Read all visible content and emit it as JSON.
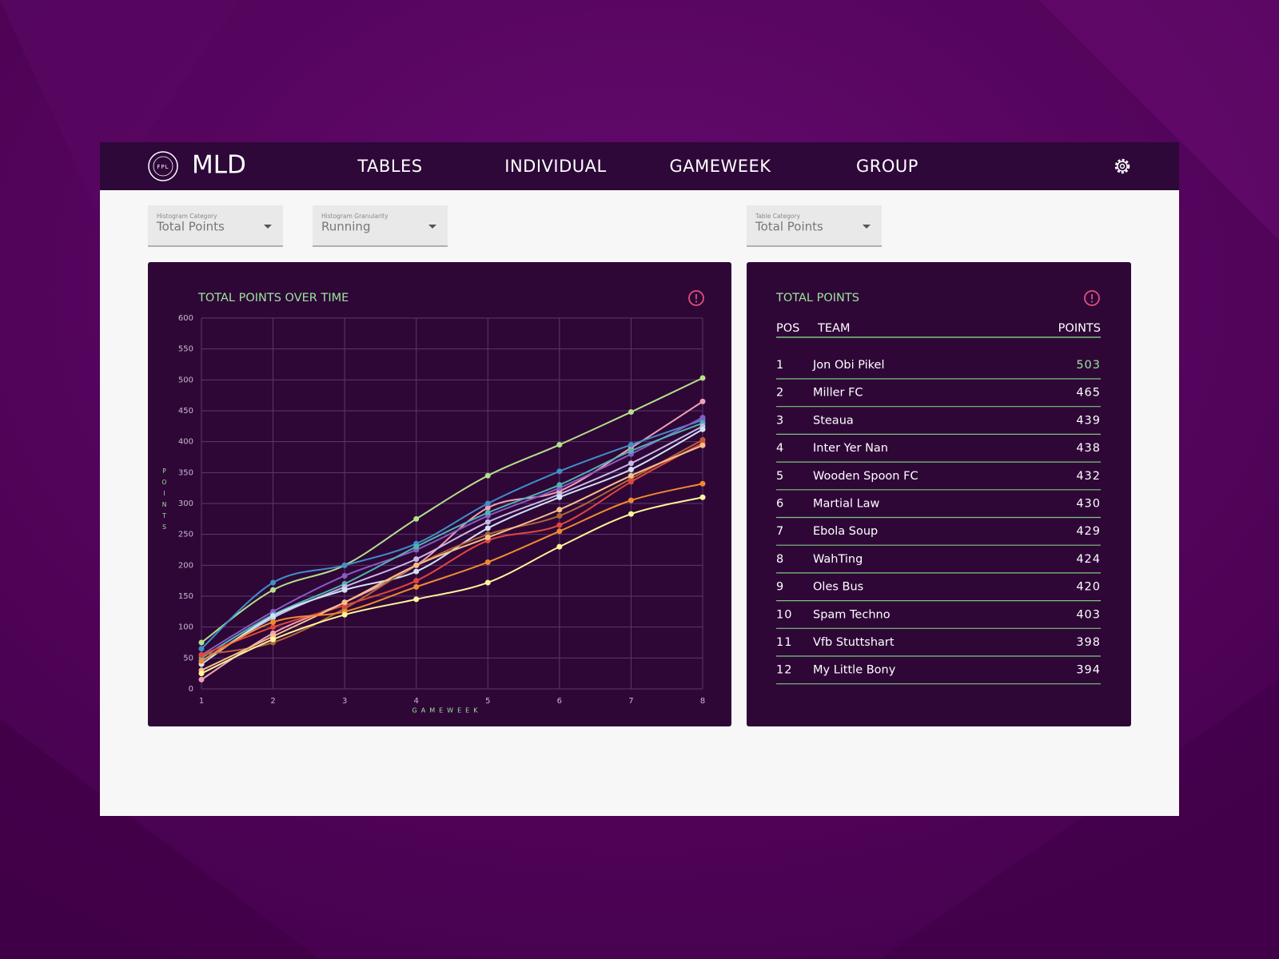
{
  "header": {
    "logo_text": "FPL",
    "title": "MLD",
    "nav": [
      "TABLES",
      "INDIVIDUAL",
      "GAMEWEEK",
      "GROUP"
    ]
  },
  "filters": [
    {
      "label": "Histogram Category",
      "value": "Total Points"
    },
    {
      "label": "Histogram Granularity",
      "value": "Running"
    },
    {
      "label": "Table Category",
      "value": "Total Points"
    }
  ],
  "chart_data": {
    "type": "line",
    "title": "TOTAL POINTS OVER TIME",
    "x_label": "GAMEWEEK",
    "y_label": "POINTS",
    "x": [
      1,
      2,
      3,
      4,
      5,
      6,
      7,
      8
    ],
    "xlim": [
      1,
      8
    ],
    "xticks": [
      1,
      2,
      3,
      4,
      5,
      6,
      7,
      8
    ],
    "ylim": [
      0,
      600
    ],
    "yticks": [
      0,
      50,
      100,
      150,
      200,
      250,
      300,
      350,
      400,
      450,
      500,
      550,
      600
    ],
    "grid": true,
    "smooth": true,
    "series": [
      {
        "color": "#b5e08a",
        "values": [
          75,
          160,
          200,
          275,
          345,
          395,
          448,
          503
        ]
      },
      {
        "color": "#f2a0b4",
        "values": [
          15,
          90,
          140,
          200,
          293,
          320,
          390,
          465
        ]
      },
      {
        "color": "#3f8fc9",
        "values": [
          65,
          172,
          200,
          235,
          300,
          352,
          395,
          435
        ]
      },
      {
        "color": "#8a5bc4",
        "values": [
          55,
          125,
          183,
          225,
          280,
          325,
          380,
          439
        ]
      },
      {
        "color": "#4fb3b0",
        "values": [
          50,
          120,
          170,
          230,
          285,
          330,
          385,
          430
        ]
      },
      {
        "color": "#c7b8e8",
        "values": [
          45,
          115,
          165,
          210,
          270,
          315,
          365,
          425
        ]
      },
      {
        "color": "#cfe3f5",
        "values": [
          40,
          118,
          160,
          190,
          260,
          310,
          355,
          420
        ]
      },
      {
        "color": "#b0653a",
        "values": [
          55,
          75,
          130,
          200,
          250,
          280,
          340,
          403
        ]
      },
      {
        "color": "#e0473c",
        "values": [
          55,
          100,
          135,
          175,
          240,
          265,
          335,
          398
        ]
      },
      {
        "color": "#f7c08a",
        "values": [
          30,
          85,
          140,
          200,
          245,
          290,
          345,
          394
        ]
      },
      {
        "color": "#f08a30",
        "values": [
          45,
          108,
          125,
          165,
          205,
          255,
          305,
          332
        ]
      },
      {
        "color": "#fff59a",
        "values": [
          25,
          80,
          120,
          145,
          172,
          230,
          283,
          310
        ]
      }
    ]
  },
  "table": {
    "title": "TOTAL POINTS",
    "columns": [
      "POS",
      "TEAM",
      "POINTS"
    ],
    "rows": [
      [
        1,
        "Jon Obi Pikel",
        503
      ],
      [
        2,
        "Miller FC",
        465
      ],
      [
        3,
        "Steaua",
        439
      ],
      [
        4,
        "Inter Yer Nan",
        438
      ],
      [
        5,
        "Wooden Spoon FC",
        432
      ],
      [
        6,
        "Martial Law",
        430
      ],
      [
        7,
        "Ebola Soup",
        429
      ],
      [
        8,
        "WahTing",
        424
      ],
      [
        9,
        "Oles Bus",
        420
      ],
      [
        10,
        "Spam Techno",
        403
      ],
      [
        11,
        "Vfb Stuttshart",
        398
      ],
      [
        12,
        "My Little Bony",
        394
      ]
    ]
  }
}
